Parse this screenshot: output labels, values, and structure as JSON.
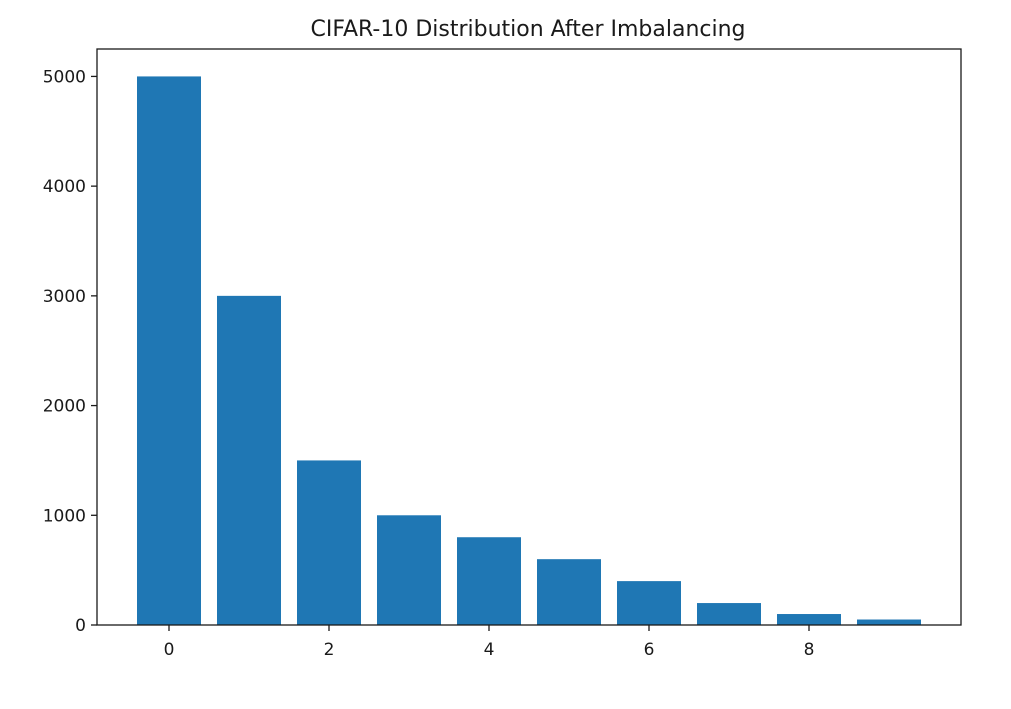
{
  "chart_data": {
    "type": "bar",
    "title": "CIFAR-10 Distribution After Imbalancing",
    "xlabel": "",
    "ylabel": "",
    "categories": [
      0,
      1,
      2,
      3,
      4,
      5,
      6,
      7,
      8,
      9
    ],
    "values": [
      5000,
      3000,
      1500,
      1000,
      800,
      600,
      400,
      200,
      100,
      50
    ],
    "xticks": [
      "0",
      "2",
      "4",
      "6",
      "8"
    ],
    "yticks": [
      "0",
      "1000",
      "2000",
      "3000",
      "4000",
      "5000"
    ],
    "xlim": [
      -0.9,
      9.9
    ],
    "ylim": [
      0,
      5250
    ],
    "bar_color": "#1f77b4",
    "grid": false
  }
}
